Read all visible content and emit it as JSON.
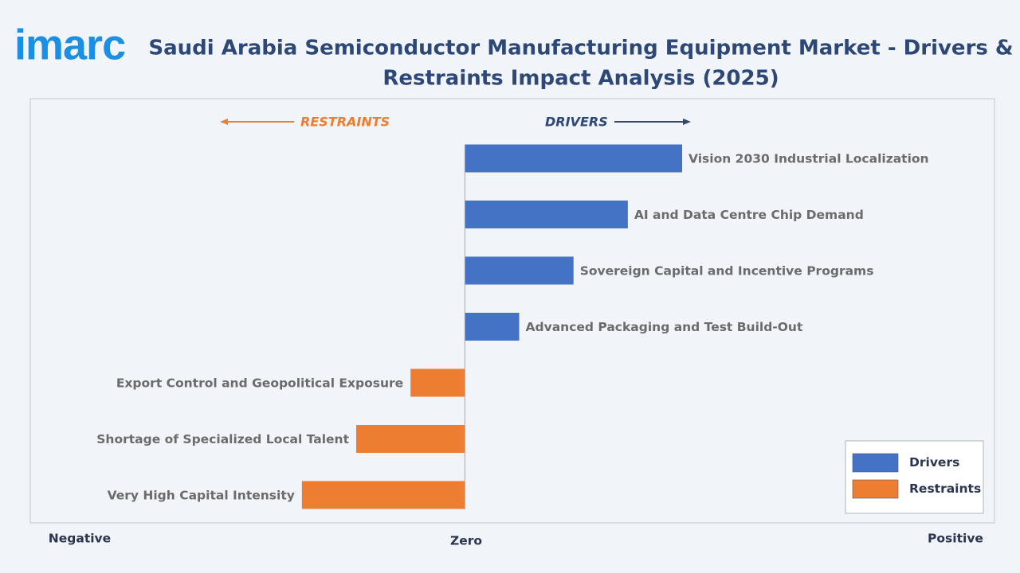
{
  "logo": "imarc",
  "chart_data": {
    "type": "bar",
    "orientation": "horizontal",
    "title": [
      "Saudi Arabia Semiconductor Manufacturing Equipment Market - Drivers &",
      "Restraints Impact Analysis (2025)"
    ],
    "annotations": [
      "RESTRAINTS",
      "DRIVERS"
    ],
    "x_labels": [
      "Negative",
      "Zero",
      "Positive"
    ],
    "categories": [
      "Vision 2030 Industrial Localization",
      "AI and Data Centre Chip Demand",
      "Sovereign Capital and Incentive Programs",
      "Advanced Packaging and Test Build-Out",
      "Export Control and Geopolitical Exposure",
      "Shortage of Specialized Local Talent",
      "Very High Capital Intensity"
    ],
    "series": [
      {
        "name": "Drivers",
        "color": "#4472c4",
        "values": [
          4,
          3,
          2,
          1,
          null,
          null,
          null
        ]
      },
      {
        "name": "Restraints",
        "color": "#ed7d31",
        "values": [
          null,
          null,
          null,
          null,
          -1,
          -2,
          -3
        ]
      }
    ],
    "xlim": [
      -8,
      9.75
    ],
    "legend": "lower right"
  }
}
